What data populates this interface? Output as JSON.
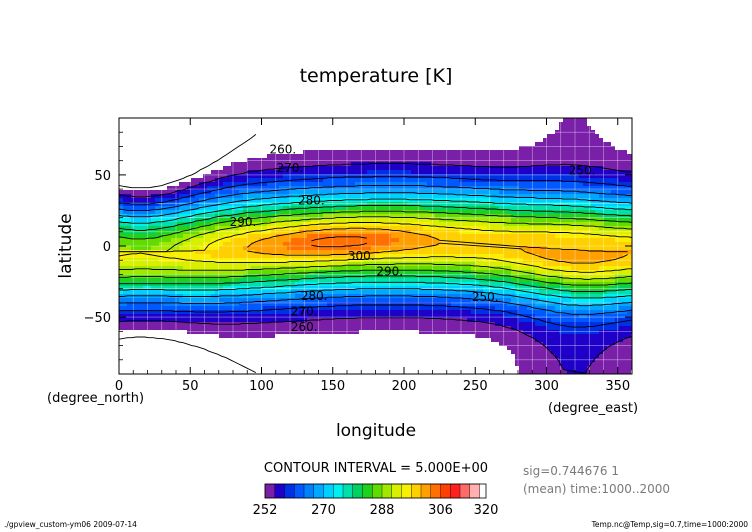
{
  "chart_data": {
    "type": "heatmap",
    "title": "temperature [K]",
    "xlabel": "longitude",
    "ylabel": "latitude",
    "x_unit": "(degree_east)",
    "y_unit": "(degree_north)",
    "xlim": [
      0,
      360
    ],
    "ylim": [
      -90,
      90
    ],
    "x_ticks": [
      0,
      50,
      100,
      150,
      200,
      250,
      300,
      350
    ],
    "y_ticks": [
      -50,
      0,
      50
    ],
    "grid": true,
    "contour_interval_text": "CONTOUR INTERVAL = 5.000E+00",
    "contour_interval": 5,
    "contour_labels": [
      {
        "text": "260.",
        "lon": 115,
        "lat": 68
      },
      {
        "text": "270.",
        "lon": 120,
        "lat": 55
      },
      {
        "text": "280.",
        "lon": 135,
        "lat": 32
      },
      {
        "text": "290.",
        "lon": 87,
        "lat": 17
      },
      {
        "text": "300.",
        "lon": 170,
        "lat": -7
      },
      {
        "text": "290.",
        "lon": 190,
        "lat": -18
      },
      {
        "text": "280.",
        "lon": 137,
        "lat": -35
      },
      {
        "text": "270.",
        "lon": 130,
        "lat": -46
      },
      {
        "text": "260.",
        "lon": 130,
        "lat": -57
      },
      {
        "text": "250.",
        "lon": 325,
        "lat": 53
      },
      {
        "text": "250.",
        "lon": 257,
        "lat": -36
      }
    ],
    "colorbar": {
      "tick_labels": [
        "252",
        "270",
        "288",
        "306",
        "320"
      ],
      "range": [
        252,
        320
      ],
      "levels": [
        252,
        255,
        258,
        261,
        264,
        267,
        270,
        273,
        276,
        279,
        282,
        285,
        288,
        291,
        294,
        297,
        300,
        303,
        306,
        309,
        312,
        315,
        318,
        320
      ],
      "colors": [
        "#7a1fa8",
        "#1f00c8",
        "#0030e6",
        "#0058ff",
        "#0080ff",
        "#00a8ff",
        "#00d0ff",
        "#00f0f0",
        "#00e0a8",
        "#00d060",
        "#20d020",
        "#60dc00",
        "#a0e800",
        "#d8f000",
        "#f8f000",
        "#ffd000",
        "#ffa000",
        "#ff7000",
        "#ff4000",
        "#ff2020",
        "#ff6a6a",
        "#ffb0b0"
      ]
    }
  },
  "info": {
    "sig_text": "sig=0.744676 1",
    "time_text": "(mean) time:1000..2000"
  },
  "footer": {
    "left": "./gpview_custom-ym06  2009-07-14",
    "right": "Temp.nc@Temp,sig=0.7,time=1000:2000"
  }
}
